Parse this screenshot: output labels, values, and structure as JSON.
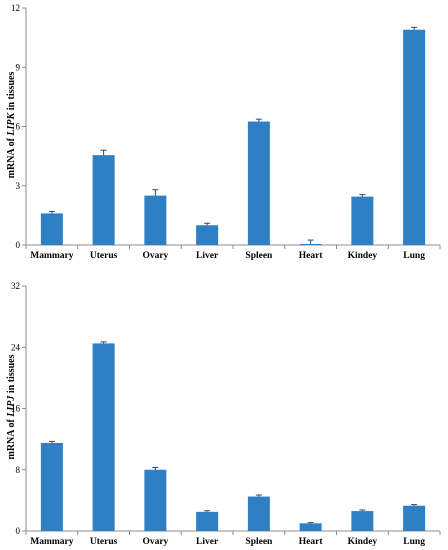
{
  "colors": {
    "bar": "#2f7fc4",
    "bar_edge": "#1f4e79",
    "axis": "#8c8c8c"
  },
  "chart_data": [
    {
      "type": "bar",
      "title": "",
      "categories": [
        "Mammary",
        "Uterus",
        "Ovary",
        "Liver",
        "Spleen",
        "Heart",
        "Kindey",
        "Lung"
      ],
      "values": [
        1.6,
        4.55,
        2.5,
        1.0,
        6.25,
        0.05,
        2.45,
        10.9
      ],
      "errors": [
        0.1,
        0.25,
        0.3,
        0.1,
        0.12,
        0.2,
        0.1,
        0.12
      ],
      "ylabel_prefix": "mRNA of ",
      "ylabel_gene": "LIPK",
      "ylabel_suffix": " in tissues",
      "xlabel": "",
      "ylim": [
        0,
        12
      ],
      "yticks": [
        0,
        3,
        6,
        9,
        12
      ],
      "grid": false,
      "legend": "none"
    },
    {
      "type": "bar",
      "title": "",
      "categories": [
        "Mammary",
        "Uterus",
        "Ovary",
        "Liver",
        "Spleen",
        "Heart",
        "Kindey",
        "Lung"
      ],
      "values": [
        11.5,
        24.5,
        8.0,
        2.5,
        4.5,
        1.0,
        2.6,
        3.3
      ],
      "errors": [
        0.2,
        0.2,
        0.3,
        0.15,
        0.2,
        0.1,
        0.15,
        0.15
      ],
      "ylabel_prefix": "mRNA of ",
      "ylabel_gene": "LIPJ",
      "ylabel_suffix": " in tissues",
      "xlabel": "",
      "ylim": [
        0,
        32
      ],
      "yticks": [
        0,
        8,
        16,
        24,
        32
      ],
      "grid": false,
      "legend": "none"
    }
  ]
}
